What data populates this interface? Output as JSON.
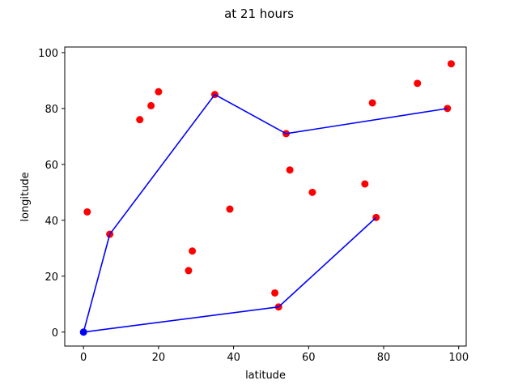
{
  "chart_data": {
    "type": "scatter",
    "title": "at 21 hours",
    "xlabel": "latitude",
    "ylabel": "longitude",
    "xlim": [
      -5,
      102
    ],
    "ylim": [
      -5,
      102
    ],
    "xticks": [
      0,
      20,
      40,
      60,
      80,
      100
    ],
    "yticks": [
      0,
      20,
      40,
      60,
      80,
      100
    ],
    "grid": false,
    "series": [
      {
        "type": "scatter",
        "color": "#ff0000",
        "points": [
          [
            1,
            43
          ],
          [
            7,
            35
          ],
          [
            15,
            76
          ],
          [
            18,
            81
          ],
          [
            20,
            86
          ],
          [
            28,
            22
          ],
          [
            29,
            29
          ],
          [
            35,
            85
          ],
          [
            39,
            44
          ],
          [
            51,
            14
          ],
          [
            52,
            9
          ],
          [
            54,
            71
          ],
          [
            55,
            58
          ],
          [
            61,
            50
          ],
          [
            75,
            53
          ],
          [
            77,
            82
          ],
          [
            78,
            41
          ],
          [
            89,
            89
          ],
          [
            97,
            80
          ],
          [
            98,
            96
          ]
        ]
      },
      {
        "type": "line",
        "color": "#0000ff",
        "points": [
          [
            97,
            80
          ],
          [
            54,
            71
          ],
          [
            35,
            85
          ],
          [
            7,
            35
          ],
          [
            0,
            0
          ],
          [
            52,
            9
          ],
          [
            78,
            41
          ]
        ],
        "start_marker": [
          0,
          0
        ]
      }
    ]
  }
}
